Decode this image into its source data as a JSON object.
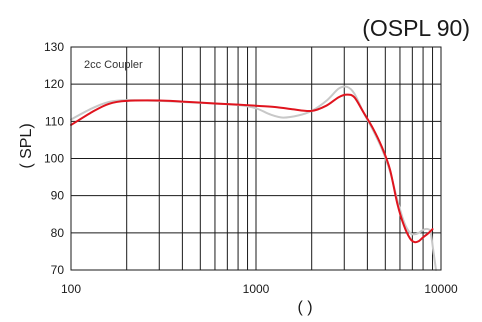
{
  "chart_data": {
    "type": "line",
    "title": "(OSPL 90)",
    "annotation": "2cc Coupler",
    "xlabel": "(    )",
    "ylabel": "(   SPL)",
    "x_scale": "log",
    "xlim": [
      100,
      10000
    ],
    "ylim": [
      70,
      130
    ],
    "x_ticks": [
      100,
      1000,
      10000
    ],
    "x_tick_labels": [
      "100",
      "1000",
      "10000"
    ],
    "y_ticks": [
      70,
      80,
      90,
      100,
      110,
      120,
      130
    ],
    "y_tick_labels": [
      "70",
      "80",
      "90",
      "100",
      "110",
      "120",
      "130"
    ],
    "grid": true,
    "series": [
      {
        "color": "#e0141e",
        "x": [
          100,
          130,
          160,
          200,
          300,
          400,
          600,
          800,
          1000,
          1300,
          1600,
          2000,
          2400,
          2800,
          3100,
          3400,
          3800,
          4300,
          4800,
          5300,
          5800,
          6300,
          6800,
          7200,
          7600,
          8000,
          8500,
          9000
        ],
        "y": [
          109,
          112.5,
          114.7,
          115.5,
          115.6,
          115.3,
          114.8,
          114.5,
          114.2,
          113.8,
          113.2,
          112.8,
          114.2,
          116.5,
          117.2,
          116.5,
          112.5,
          108,
          103,
          97,
          88,
          82,
          78.5,
          77.5,
          77.8,
          78.8,
          79.8,
          81
        ]
      },
      {
        "color": "#c8c8c8",
        "x": [
          100,
          130,
          160,
          200,
          300,
          400,
          600,
          800,
          1000,
          1200,
          1400,
          1700,
          2000,
          2400,
          2800,
          3100,
          3400,
          3800,
          4300,
          4800,
          5300,
          5800,
          6300,
          6800,
          7200,
          7600,
          8000,
          8500,
          8800,
          9100,
          9400
        ],
        "y": [
          110.5,
          113.5,
          115.2,
          115.7,
          115.5,
          115.2,
          114.8,
          114.4,
          113.5,
          111.8,
          111,
          111.6,
          112.8,
          115.5,
          118.8,
          119.3,
          117.5,
          112.5,
          107.5,
          102.5,
          96.5,
          89,
          83,
          80,
          79.6,
          80,
          80.8,
          81,
          80,
          75,
          70
        ]
      }
    ]
  }
}
